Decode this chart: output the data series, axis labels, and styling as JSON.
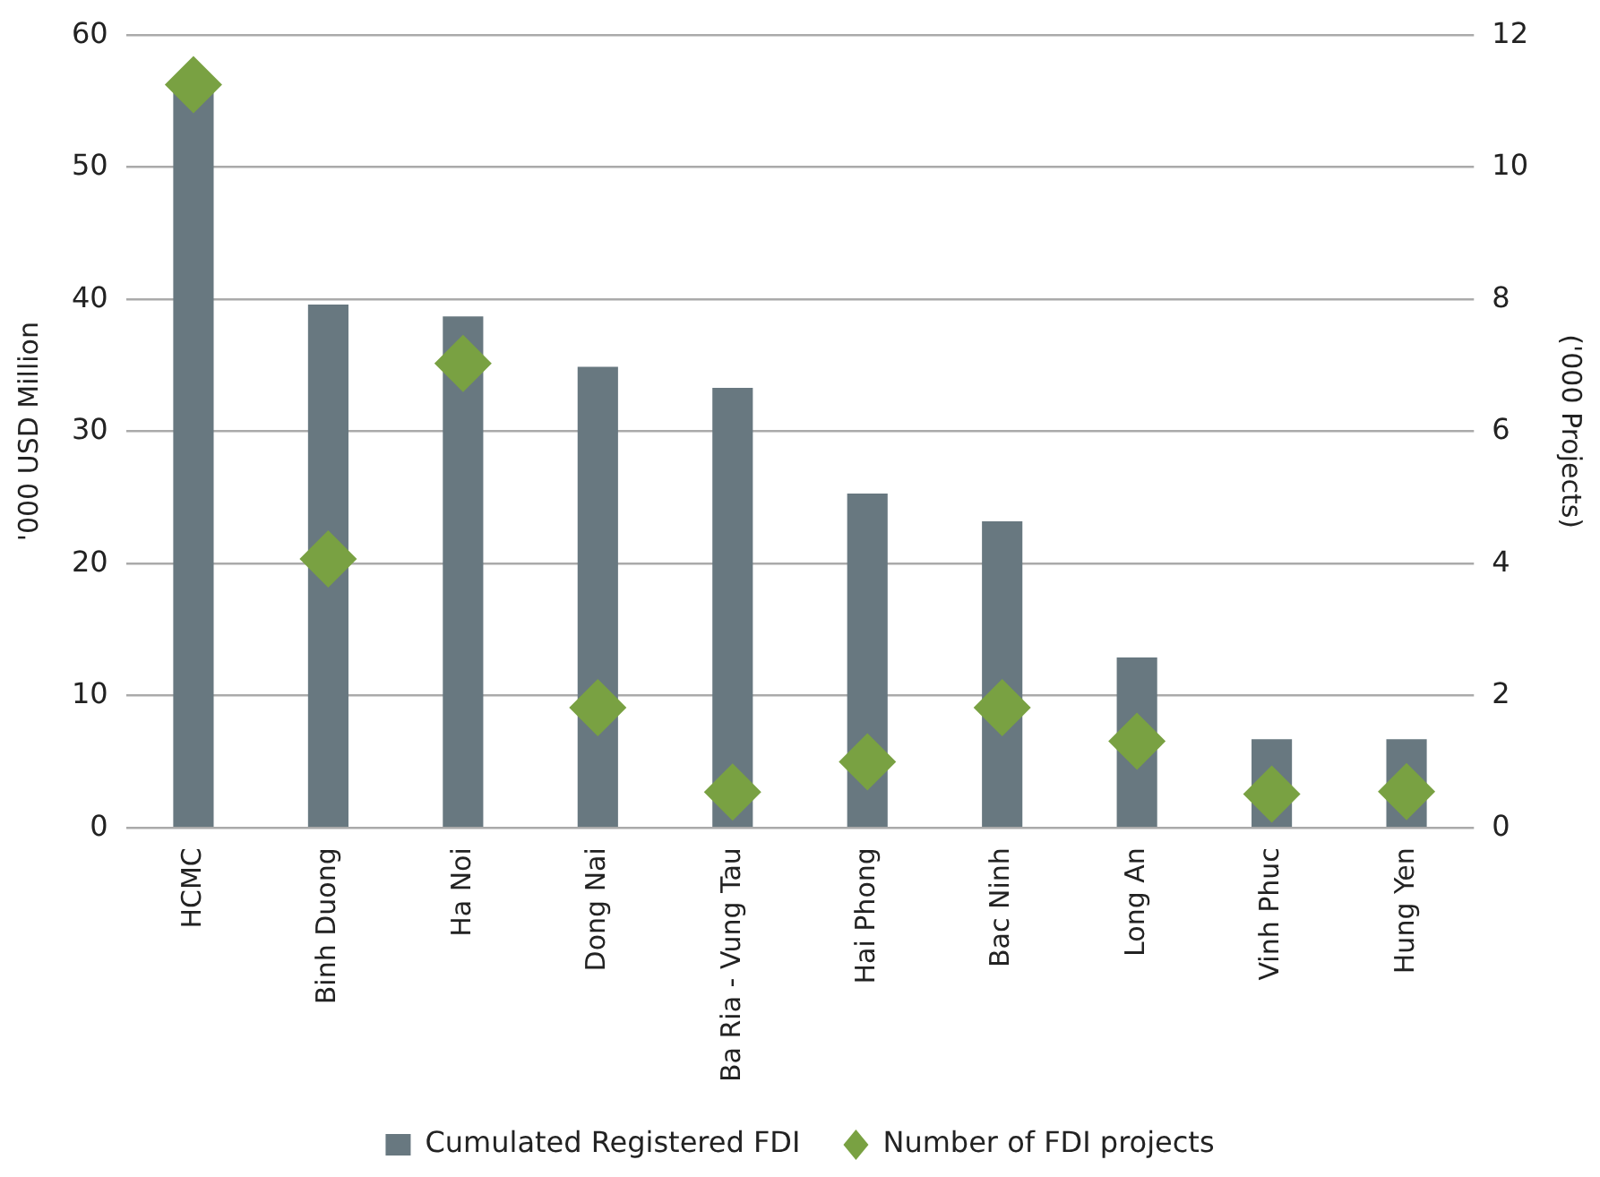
{
  "chart_data": {
    "type": "bar",
    "ylabel": "'000 USD Million",
    "y2label": "('000 Projects)",
    "categories": [
      "HCMC",
      "Binh Duong",
      "Ha Noi",
      "Dong Nai",
      "Ba Ria - Vung Tau",
      "Hai Phong",
      "Bac Ninh",
      "Long An",
      "Vinh Phuc",
      "Hung Yen"
    ],
    "series": [
      {
        "name": "Cumulated Registered FDI",
        "color": "#687880",
        "values": [
          56,
          39.6,
          38.7,
          34.9,
          33.3,
          25.3,
          23.2,
          12.9,
          6.7,
          6.7
        ]
      },
      {
        "name": "Number of FDI projects",
        "type": "scatter",
        "axis": "y2",
        "marker": "diamond",
        "color": "#79a142",
        "values": [
          11.25,
          4.07,
          7.03,
          1.82,
          0.54,
          1.0,
          1.82,
          1.31,
          0.51,
          0.55
        ]
      }
    ],
    "ylim": [
      0,
      60
    ],
    "yticks": [
      0,
      10,
      20,
      30,
      40,
      50,
      60
    ],
    "y2lim": [
      0,
      12
    ],
    "y2ticks": [
      0,
      2,
      4,
      6,
      8,
      10,
      12
    ],
    "grid": "y",
    "legend": "bottom"
  }
}
